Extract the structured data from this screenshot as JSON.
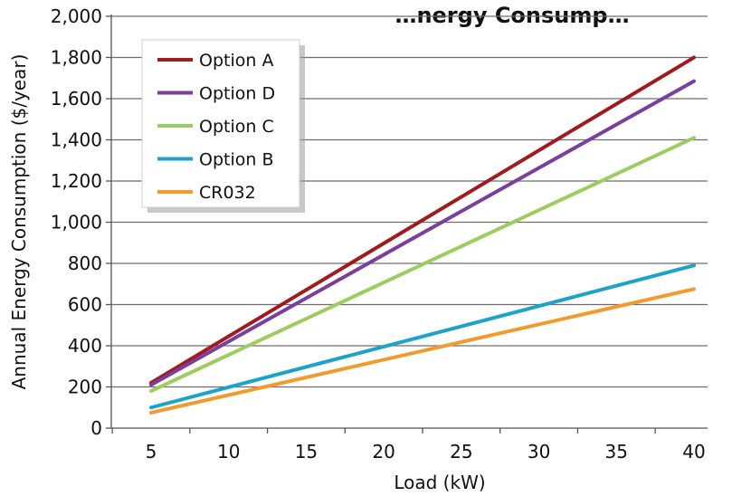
{
  "chart_data": {
    "type": "line",
    "title": "…nergy Consump…",
    "xlabel": "Load (kW)",
    "ylabel": "Annual Energy Consumption ($/year)",
    "x_categories": [
      "5",
      "10",
      "15",
      "20",
      "25",
      "30",
      "35",
      "40"
    ],
    "x_domain": [
      5,
      40
    ],
    "ylim": [
      0,
      2000
    ],
    "y_ticks": [
      0,
      200,
      400,
      600,
      800,
      1000,
      1200,
      1400,
      1600,
      1800,
      2000
    ],
    "y_tick_labels": [
      "0",
      "200",
      "400",
      "600",
      "800",
      "1,000",
      "1,200",
      "1,400",
      "1,600",
      "1,800",
      "2,000"
    ],
    "grid": "horizontal",
    "legend_position": "top-left",
    "series": [
      {
        "name": "Option A",
        "color": "#a11a1e",
        "x": [
          5,
          40
        ],
        "values": [
          220,
          1800
        ]
      },
      {
        "name": "Option D",
        "color": "#7a3e9d",
        "x": [
          5,
          40
        ],
        "values": [
          210,
          1685
        ]
      },
      {
        "name": "Option C",
        "color": "#9dcc5f",
        "x": [
          5,
          40
        ],
        "values": [
          180,
          1410
        ]
      },
      {
        "name": "Option B",
        "color": "#1ea3c8",
        "x": [
          5,
          40
        ],
        "values": [
          100,
          790
        ]
      },
      {
        "name": "CR032",
        "color": "#f39a2e",
        "x": [
          5,
          40
        ],
        "values": [
          75,
          675
        ]
      }
    ]
  }
}
